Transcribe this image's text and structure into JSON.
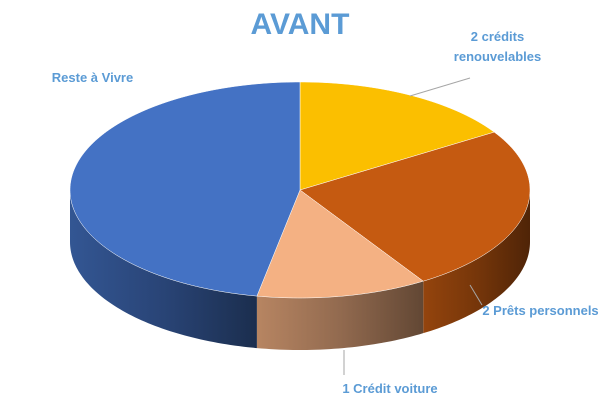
{
  "chart_data": {
    "type": "pie",
    "title": "AVANT",
    "categories": [
      "2 crédits renouvelables",
      "2 Prêts personnels",
      "1 Crédit voiture",
      "Reste à Vivre"
    ],
    "values": [
      16,
      25,
      12,
      47
    ],
    "colors": [
      "#fbbf00",
      "#c55a11",
      "#f4b183",
      "#4472c4"
    ]
  }
}
